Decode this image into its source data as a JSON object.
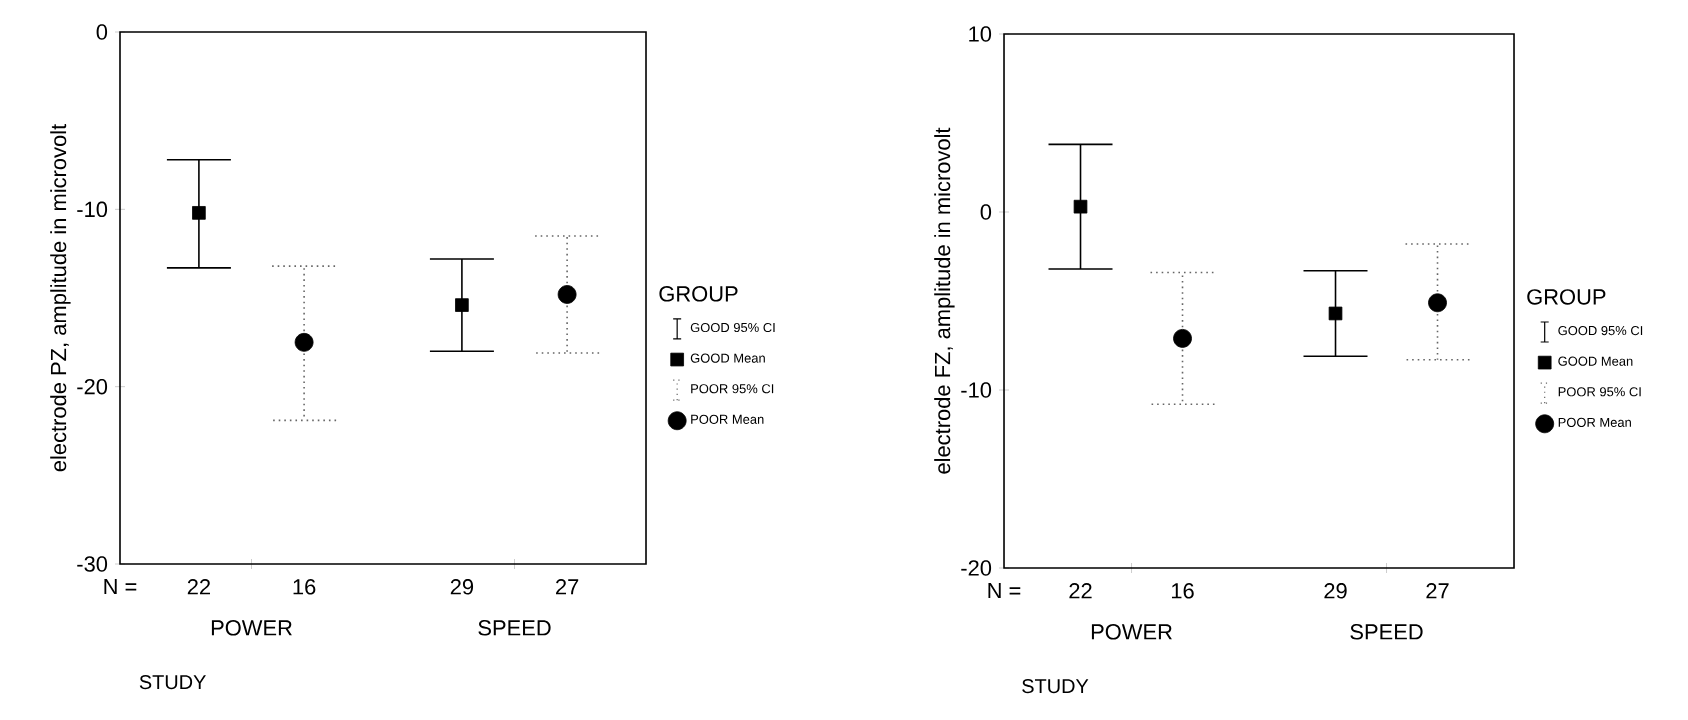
{
  "chart_data": [
    {
      "type": "scatter",
      "ylabel": "electrode PZ, amplitude in microvolt",
      "xlabel": "STUDY",
      "legend_title": "GROUP",
      "legend": "right",
      "categories": [
        "POWER",
        "SPEED"
      ],
      "ylim": [
        -30,
        0
      ],
      "yticks": [
        -30,
        -20,
        -10,
        0
      ],
      "annotations": [
        "N =",
        "22",
        "16",
        "29",
        "27",
        "GOOD 95% CI",
        "POOR 95% CI"
      ],
      "series": [
        {
          "name": "GOOD Mean",
          "color": "#000000",
          "marker": "square",
          "line_style": "solid",
          "values": [
            -10.2,
            -15.4
          ],
          "errors": [
            [
              -13.3,
              -7.2
            ],
            [
              -18.0,
              -12.8
            ]
          ]
        },
        {
          "name": "POOR Mean",
          "color": "#000000",
          "marker": "circle",
          "line_style": "dotted",
          "values": [
            -17.5,
            -14.8
          ],
          "errors": [
            [
              -21.9,
              -13.2
            ],
            [
              -18.1,
              -11.5
            ]
          ]
        }
      ]
    },
    {
      "type": "scatter",
      "ylabel": "electrode FZ, amplitude in microvolt",
      "xlabel": "STUDY",
      "legend_title": "GROUP",
      "legend": "right",
      "categories": [
        "POWER",
        "SPEED"
      ],
      "ylim": [
        -20,
        10
      ],
      "yticks": [
        -20,
        -10,
        0,
        10
      ],
      "annotations": [
        "N =",
        "22",
        "16",
        "29",
        "27",
        "GOOD 95% CI",
        "POOR 95% CI"
      ],
      "series": [
        {
          "name": "GOOD Mean",
          "color": "#000000",
          "marker": "square",
          "line_style": "solid",
          "values": [
            0.3,
            -5.7
          ],
          "errors": [
            [
              -3.2,
              3.8
            ],
            [
              -8.1,
              -3.3
            ]
          ]
        },
        {
          "name": "POOR Mean",
          "color": "#000000",
          "marker": "circle",
          "line_style": "dotted",
          "values": [
            -7.1,
            -5.1
          ],
          "errors": [
            [
              -10.8,
              -3.4
            ],
            [
              -8.3,
              -1.8
            ]
          ]
        }
      ]
    }
  ]
}
